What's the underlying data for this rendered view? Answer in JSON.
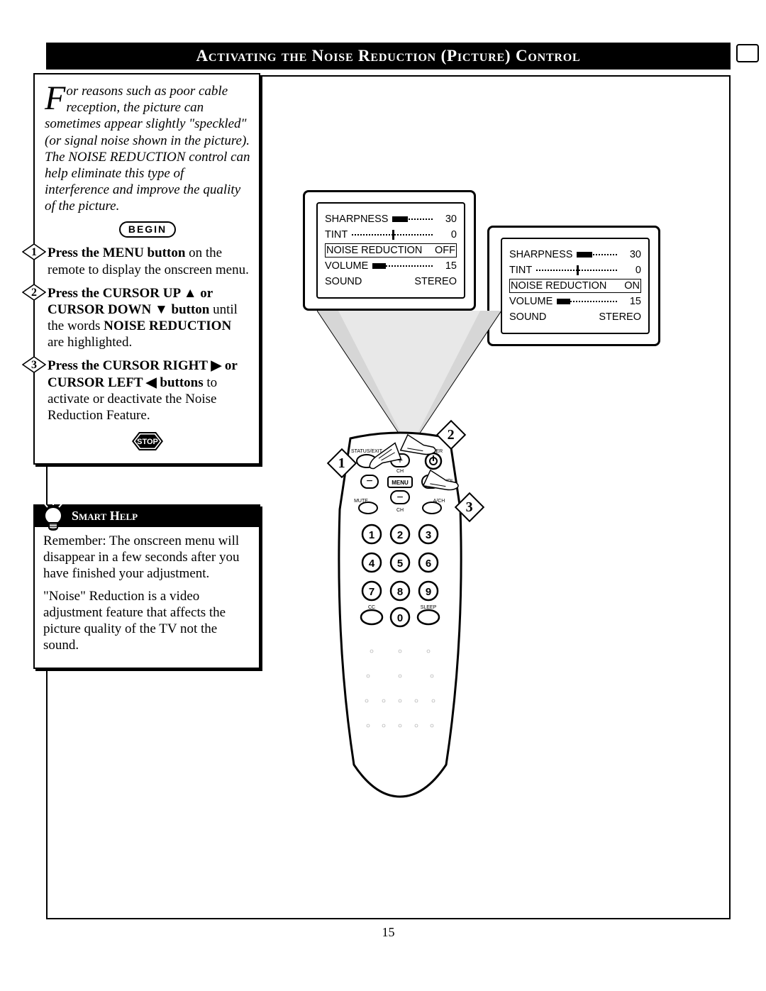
{
  "title": "Activating the Noise Reduction (Picture) Control",
  "intro_first": "F",
  "intro_rest": "or reasons such as poor cable reception, the picture can sometimes appear slightly \"speckled\" (or signal noise shown in the picture). The NOISE REDUCTION control can help eliminate this type of interference and improve the quality of the picture.",
  "begin": "BEGIN",
  "steps": [
    {
      "n": "1",
      "bold": "Press the MENU button",
      "tail": " on the remote to display the onscreen menu."
    },
    {
      "n": "2",
      "bold": "Press the CURSOR UP ▲ or CURSOR DOWN ▼ button",
      "tail": " until the words ",
      "bold2": "NOISE REDUCTION",
      "tail2": " are highlighted."
    },
    {
      "n": "3",
      "bold": "Press the CURSOR RIGHT ▶ or CURSOR LEFT ◀ buttons",
      "tail": " to activate or deactivate the Noise Reduction Feature."
    }
  ],
  "stop": "STOP",
  "help_title": "Smart Help",
  "help_p1": "Remember: The onscreen menu will disappear in a few seconds after you have finished your adjustment.",
  "help_p2": "\"Noise\" Reduction is a video adjustment feature that  affects the picture quality of the TV not the sound.",
  "osd": {
    "rows": [
      {
        "label": "SHARPNESS",
        "type": "bar",
        "fill": 38,
        "val": "30"
      },
      {
        "label": "TINT",
        "type": "tick",
        "tick": 50,
        "val": "0"
      },
      {
        "label": "NOISE REDUCTION",
        "type": "sel",
        "val": "OFF"
      },
      {
        "label": "VOLUME",
        "type": "bar",
        "fill": 22,
        "val": "15"
      },
      {
        "label": "SOUND",
        "type": "text",
        "val": "STEREO"
      }
    ]
  },
  "osd2": {
    "rows": [
      {
        "label": "SHARPNESS",
        "type": "bar",
        "fill": 38,
        "val": "30"
      },
      {
        "label": "TINT",
        "type": "tick",
        "tick": 50,
        "val": "0"
      },
      {
        "label": "NOISE REDUCTION",
        "type": "sel",
        "val": "ON"
      },
      {
        "label": "VOLUME",
        "type": "bar",
        "fill": 22,
        "val": "15"
      },
      {
        "label": "SOUND",
        "type": "text",
        "val": "STEREO"
      }
    ]
  },
  "remote": {
    "labels": {
      "status": "STATUS/EXIT",
      "power": "POWER",
      "ch": "CH",
      "vol": "VOL",
      "menu": "MENU",
      "mute": "MUTE",
      "ach": "A/CH",
      "cc": "CC",
      "sleep": "SLEEP"
    },
    "nums": [
      "1",
      "2",
      "3",
      "4",
      "5",
      "6",
      "7",
      "8",
      "9",
      "0"
    ]
  },
  "callouts": [
    "1",
    "2",
    "3"
  ],
  "page": "15"
}
